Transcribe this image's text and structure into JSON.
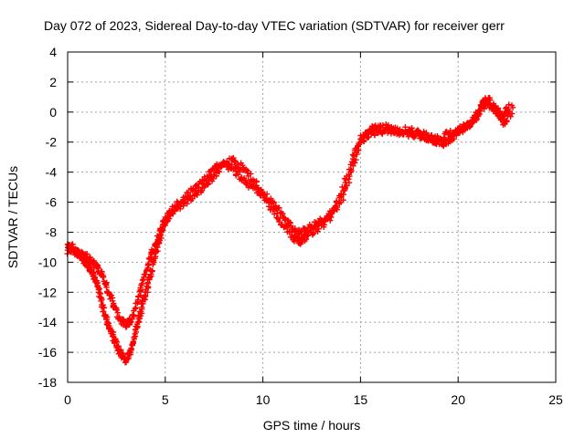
{
  "chart_data": {
    "type": "scatter",
    "title": "Day 072 of 2023, Sidereal Day-to-day VTEC variation (SDTVAR) for receiver gerr",
    "xlabel": "GPS time / hours",
    "ylabel": "SDTVAR / TECUs",
    "xlim": [
      0,
      25
    ],
    "ylim": [
      -18,
      4
    ],
    "x_ticks": [
      0,
      5,
      10,
      15,
      20,
      25
    ],
    "y_ticks": [
      -18,
      -16,
      -14,
      -12,
      -10,
      -8,
      -6,
      -4,
      -2,
      0,
      2,
      4
    ],
    "grid": true,
    "marker": "plus",
    "color": "#ff0000",
    "series": [
      {
        "values_x": [
          0.0,
          0.2,
          0.4,
          0.6,
          0.8,
          1.0,
          1.2,
          1.4,
          1.6,
          1.8,
          2.0,
          2.2,
          2.4,
          2.6,
          2.8,
          3.0,
          3.2,
          3.4,
          3.6,
          3.8,
          4.0,
          4.2,
          4.4,
          4.6,
          4.8,
          5.0,
          5.5,
          6.0,
          6.5,
          7.0,
          7.5,
          8.0,
          8.5,
          9.0,
          9.5,
          10.0,
          10.5,
          11.0,
          11.5,
          11.8,
          12.0,
          12.5,
          13.0,
          13.5,
          14.0,
          14.5,
          15.0,
          15.5,
          16.0,
          16.5,
          17.0,
          17.5,
          18.0,
          18.5,
          19.0,
          19.5,
          20.0,
          20.5,
          21.0,
          21.3,
          21.6,
          22.0,
          22.4,
          22.8
        ],
        "values_y": [
          -8.8,
          -9.0,
          -9.2,
          -9.5,
          -9.8,
          -10.0,
          -10.5,
          -11.0,
          -12.0,
          -13.0,
          -13.8,
          -14.5,
          -15.2,
          -15.8,
          -16.2,
          -16.5,
          -16.0,
          -15.0,
          -14.0,
          -13.0,
          -12.0,
          -11.0,
          -10.0,
          -9.0,
          -8.0,
          -7.0,
          -6.5,
          -6.0,
          -5.5,
          -5.0,
          -4.2,
          -3.5,
          -3.8,
          -4.5,
          -5.0,
          -5.5,
          -6.5,
          -7.5,
          -8.2,
          -8.6,
          -8.5,
          -8.0,
          -7.5,
          -7.0,
          -5.5,
          -3.5,
          -1.8,
          -1.2,
          -1.0,
          -1.1,
          -1.3,
          -1.2,
          -1.5,
          -1.6,
          -1.8,
          -1.5,
          -1.2,
          -0.8,
          -0.3,
          0.8,
          0.5,
          0.0,
          -0.8,
          0.3
        ]
      },
      {
        "values_x": [
          0.0,
          0.3,
          0.6,
          0.9,
          1.2,
          1.5,
          1.8,
          2.1,
          2.4,
          2.7,
          3.0,
          3.3,
          3.6,
          3.9,
          4.2,
          4.5,
          4.8,
          5.2,
          5.8,
          6.4,
          7.0,
          7.5,
          8.0,
          8.5,
          9.0,
          9.5,
          10.0,
          10.5,
          11.0,
          11.5,
          12.0,
          12.5,
          13.0,
          13.5,
          14.0,
          14.5,
          15.0,
          15.6,
          16.2,
          16.8,
          17.4,
          18.0,
          18.6,
          19.2,
          19.6,
          20.0,
          20.4,
          20.8,
          21.2,
          21.6,
          22.0,
          22.3,
          22.6
        ],
        "values_y": [
          -9.2,
          -9.3,
          -9.4,
          -9.6,
          -9.9,
          -10.3,
          -11.0,
          -12.0,
          -13.0,
          -13.8,
          -14.2,
          -13.8,
          -12.5,
          -11.0,
          -9.8,
          -8.8,
          -7.8,
          -6.8,
          -6.0,
          -5.2,
          -4.5,
          -3.8,
          -3.5,
          -3.2,
          -3.8,
          -4.5,
          -5.5,
          -6.0,
          -6.8,
          -7.8,
          -8.0,
          -7.6,
          -7.2,
          -6.8,
          -6.0,
          -4.0,
          -2.0,
          -1.4,
          -1.2,
          -1.3,
          -1.4,
          -1.5,
          -1.8,
          -2.2,
          -1.8,
          -1.3,
          -1.0,
          -0.5,
          0.3,
          0.8,
          0.2,
          -0.5,
          0.5
        ]
      }
    ]
  }
}
